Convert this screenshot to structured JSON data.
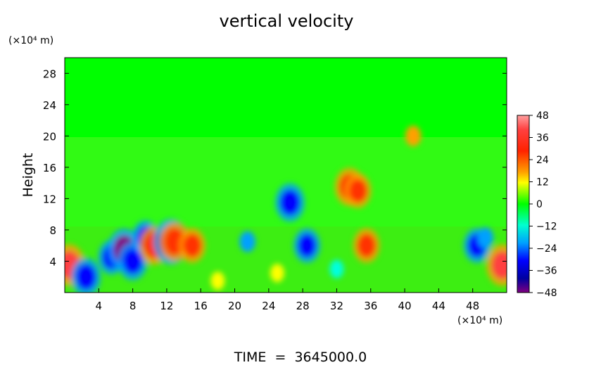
{
  "chart_data": {
    "type": "heatmap",
    "title": "vertical velocity",
    "xlabel": "",
    "ylabel": "Height",
    "x_unit": "(×10⁴ m)",
    "y_unit": "(×10⁴ m)",
    "x_ticks": [
      4,
      8,
      12,
      16,
      20,
      24,
      28,
      32,
      36,
      40,
      44,
      48
    ],
    "y_ticks": [
      4,
      8,
      12,
      16,
      20,
      24,
      28
    ],
    "xlim": [
      0,
      52
    ],
    "ylim": [
      0,
      30
    ],
    "colorbar": {
      "ticks": [
        48,
        36,
        24,
        12,
        0,
        -12,
        -24,
        -36,
        -48
      ],
      "range": [
        -48,
        48
      ]
    },
    "footer": "TIME  =  3645000.0",
    "features": [
      {
        "x": 0.5,
        "y": 3.5,
        "v": 42
      },
      {
        "x": 51.5,
        "y": 3.5,
        "v": 42
      },
      {
        "x": 2.5,
        "y": 2.0,
        "v": -36
      },
      {
        "x": 5.5,
        "y": 4.5,
        "v": -30
      },
      {
        "x": 7.0,
        "y": 5.5,
        "v": -42
      },
      {
        "x": 8.0,
        "y": 4.0,
        "v": -36
      },
      {
        "x": 9.5,
        "y": 7.0,
        "v": -30
      },
      {
        "x": 10.5,
        "y": 6.0,
        "v": 36
      },
      {
        "x": 12.5,
        "y": 6.5,
        "v": -48
      },
      {
        "x": 13.0,
        "y": 6.5,
        "v": 38
      },
      {
        "x": 15.0,
        "y": 6.0,
        "v": 30
      },
      {
        "x": 21.5,
        "y": 6.5,
        "v": -24
      },
      {
        "x": 28.5,
        "y": 6.0,
        "v": -30
      },
      {
        "x": 35.5,
        "y": 6.0,
        "v": 30
      },
      {
        "x": 33.5,
        "y": 13.5,
        "v": 36
      },
      {
        "x": 34.5,
        "y": 13.0,
        "v": 30
      },
      {
        "x": 26.5,
        "y": 11.5,
        "v": -36
      },
      {
        "x": 48.5,
        "y": 6.0,
        "v": -30
      },
      {
        "x": 49.5,
        "y": 7.0,
        "v": -24
      },
      {
        "x": 41.0,
        "y": 20.0,
        "v": 24
      },
      {
        "x": 18.0,
        "y": 1.5,
        "v": 18
      },
      {
        "x": 25.0,
        "y": 2.5,
        "v": 18
      },
      {
        "x": 32.0,
        "y": 3.0,
        "v": -18
      }
    ]
  }
}
